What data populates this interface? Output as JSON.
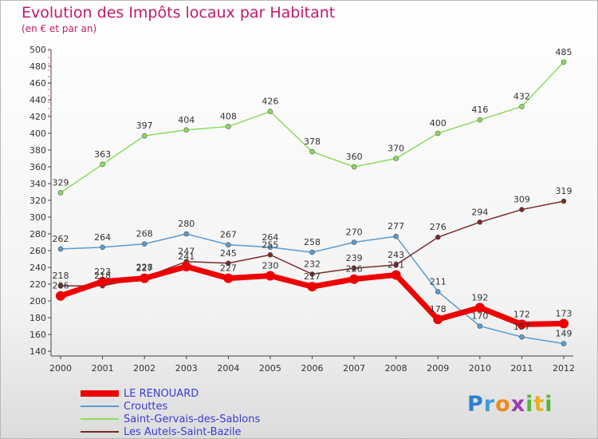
{
  "title": "Evolution des Impôts locaux par Habitant",
  "subtitle": "(en € et par an)",
  "logo": {
    "letters": [
      "P",
      "r",
      "o",
      "x",
      "i",
      "t",
      "i"
    ],
    "colors": [
      "#2f7fd0",
      "#3b9be0",
      "#f08a1c",
      "#9c3fb0",
      "#59b33a",
      "#e8b020",
      "#59b33a"
    ]
  },
  "chart_data": {
    "type": "line",
    "x": [
      "2000",
      "2001",
      "2002",
      "2003",
      "2004",
      "2005",
      "2006",
      "2007",
      "2008",
      "2009",
      "2010",
      "2011",
      "2012"
    ],
    "yticks": [
      140,
      160,
      180,
      200,
      220,
      240,
      260,
      280,
      300,
      320,
      340,
      360,
      380,
      400,
      420,
      440,
      460,
      480,
      500
    ],
    "ylim": [
      140,
      500
    ],
    "grid": false,
    "legend": "bottom-left",
    "series": [
      {
        "name": "LE RENOUARD",
        "color": "#ee0000",
        "values": [
          206,
          223,
          227,
          241,
          227,
          230,
          217,
          226,
          231,
          178,
          192,
          172,
          173
        ],
        "labels": [
          "206",
          "223",
          "227",
          "241",
          "227",
          "230",
          "217",
          "226",
          "231",
          "178",
          "192",
          "172",
          "173"
        ]
      },
      {
        "name": "Crouttes",
        "color": "#5a9bd1",
        "values": [
          262,
          264,
          268,
          280,
          267,
          264,
          258,
          270,
          277,
          211,
          170,
          157,
          149
        ],
        "labels": [
          "262",
          "264",
          "268",
          "280",
          "267",
          "264",
          "258",
          "270",
          "277",
          "211",
          "170",
          "157",
          "149"
        ]
      },
      {
        "name": "Saint-Gervais-des-Sablons",
        "color": "#8cdc5c",
        "values": [
          329,
          363,
          397,
          404,
          408,
          426,
          378,
          360,
          370,
          400,
          416,
          432,
          485
        ],
        "labels": [
          "329",
          "363",
          "397",
          "404",
          "408",
          "426",
          "378",
          "360",
          "370",
          "400",
          "416",
          "432",
          "485"
        ]
      },
      {
        "name": "Les Autels-Saint-Bazile",
        "color": "#7a2a2a",
        "values": [
          218,
          218,
          228,
          247,
          245,
          255,
          232,
          239,
          243,
          276,
          294,
          309,
          319
        ],
        "labels": [
          "218",
          "218",
          "228",
          "247",
          "245",
          "255",
          "232",
          "239",
          "243",
          "276",
          "294",
          "309",
          "319"
        ]
      }
    ]
  }
}
